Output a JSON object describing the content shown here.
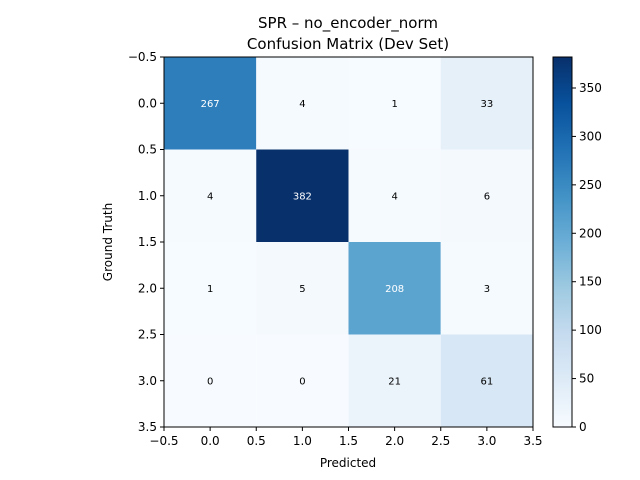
{
  "chart_data": {
    "type": "heatmap",
    "title": "SPR – no_encoder_norm",
    "subtitle": "Confusion Matrix (Dev Set)",
    "xlabel": "Predicted",
    "ylabel": "Ground Truth",
    "x_ticks": [
      "−0.5",
      "0.0",
      "0.5",
      "1.0",
      "1.5",
      "2.0",
      "2.5",
      "3.0",
      "3.5"
    ],
    "y_ticks": [
      "−0.5",
      "0.0",
      "0.5",
      "1.0",
      "1.5",
      "2.0",
      "2.5",
      "3.0",
      "3.5"
    ],
    "xlim": [
      -0.5,
      3.5
    ],
    "ylim": [
      3.5,
      -0.5
    ],
    "matrix": [
      [
        267,
        4,
        1,
        33
      ],
      [
        4,
        382,
        4,
        6
      ],
      [
        1,
        5,
        208,
        3
      ],
      [
        0,
        0,
        21,
        61
      ]
    ],
    "colormap": "Blues",
    "vmin": 0,
    "vmax": 382,
    "colorbar_ticks": [
      "0",
      "50",
      "100",
      "150",
      "200",
      "250",
      "300",
      "350"
    ],
    "grid": false
  }
}
